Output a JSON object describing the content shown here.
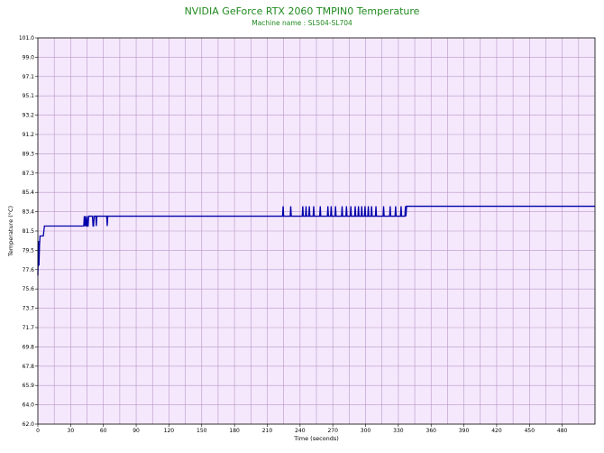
{
  "chart_data": {
    "type": "line",
    "title": "NVIDIA GeForce RTX 2060 TMPIN0 Temperature",
    "subtitle": "Machine name : SL504-SL704",
    "xlabel": "Time (seconds)",
    "ylabel": "Temperature (°C)",
    "xlim": [
      0,
      510
    ],
    "ylim": [
      62.0,
      101.0
    ],
    "xticks": [
      "0",
      "30",
      "60",
      "90",
      "120",
      "150",
      "180",
      "210",
      "240",
      "270",
      "300",
      "330",
      "360",
      "390",
      "420",
      "450",
      "480"
    ],
    "yticks": [
      "62.0",
      "64.0",
      "65.9",
      "67.8",
      "69.8",
      "71.7",
      "73.7",
      "75.6",
      "77.6",
      "79.5",
      "81.5",
      "83.4",
      "85.4",
      "87.3",
      "89.3",
      "91.2",
      "93.2",
      "95.1",
      "97.1",
      "99.0",
      "101.0"
    ],
    "grid": true,
    "colors": {
      "line": "#0000aa",
      "plot_background": "#f5e8fc",
      "grid": "#b896c8",
      "title": "#1f8a1f"
    },
    "series": [
      {
        "x": [
          0,
          0.5,
          1,
          1.5,
          2,
          3,
          5,
          6,
          7,
          8,
          42,
          42.5,
          43,
          43.5,
          44,
          44.5,
          45,
          45.5,
          46,
          46.5,
          47,
          50,
          50.5,
          51,
          51.5,
          52,
          53,
          53.5,
          54,
          55,
          63,
          63.5,
          64,
          64.5,
          65,
          224,
          224.5,
          225,
          225.5,
          231,
          231.5,
          232,
          232.5,
          242,
          242.5,
          243,
          243.5,
          245,
          245.5,
          246,
          246.5,
          248,
          248.5,
          249,
          249.5,
          252,
          252.5,
          253,
          253.5,
          258,
          258.5,
          259,
          259.5,
          265,
          265.5,
          266,
          266.5,
          268,
          268.5,
          269,
          269.5,
          272,
          272.5,
          273,
          273.5,
          278,
          278.5,
          279,
          279.5,
          282,
          282.5,
          283,
          283.5,
          286,
          286.5,
          287,
          287.5,
          290,
          290.5,
          291,
          291.5,
          293,
          293.5,
          294,
          294.5,
          296,
          296.5,
          297,
          297.5,
          299,
          299.5,
          300,
          300.5,
          302,
          302.5,
          303,
          303.5,
          305,
          305.5,
          306,
          306.5,
          309,
          309.5,
          310,
          310.5,
          316,
          316.5,
          317,
          317.5,
          322,
          322.5,
          323,
          323.5,
          327,
          327.5,
          328,
          328.5,
          332,
          332.5,
          333,
          333.5,
          336,
          336.5,
          337,
          337.5,
          510
        ],
        "y": [
          77.0,
          80.5,
          78.0,
          80.0,
          81.0,
          81.0,
          81.0,
          82.0,
          82.0,
          82.0,
          82.0,
          83.0,
          82.0,
          83.0,
          82.0,
          82.0,
          83.0,
          82.0,
          82.0,
          83.0,
          83.0,
          83.0,
          82.0,
          82.0,
          83.0,
          83.0,
          83.0,
          82.0,
          83.0,
          83.0,
          83.0,
          82.0,
          83.0,
          83.0,
          83.0,
          83.0,
          84.0,
          83.0,
          83.0,
          83.0,
          84.0,
          83.0,
          83.0,
          83.0,
          84.0,
          83.0,
          83.0,
          83.0,
          84.0,
          83.0,
          83.0,
          83.0,
          84.0,
          83.0,
          83.0,
          83.0,
          84.0,
          83.0,
          83.0,
          83.0,
          84.0,
          83.0,
          83.0,
          83.0,
          84.0,
          83.0,
          83.0,
          83.0,
          84.0,
          83.0,
          83.0,
          83.0,
          84.0,
          83.0,
          83.0,
          83.0,
          84.0,
          83.0,
          83.0,
          83.0,
          84.0,
          83.0,
          83.0,
          83.0,
          84.0,
          83.0,
          83.0,
          83.0,
          84.0,
          83.0,
          83.0,
          83.0,
          84.0,
          83.0,
          83.0,
          83.0,
          84.0,
          83.0,
          83.0,
          83.0,
          84.0,
          83.0,
          83.0,
          83.0,
          84.0,
          83.0,
          83.0,
          83.0,
          84.0,
          83.0,
          83.0,
          83.0,
          84.0,
          83.0,
          83.0,
          83.0,
          84.0,
          83.0,
          83.0,
          83.0,
          84.0,
          83.0,
          83.0,
          83.0,
          84.0,
          83.0,
          83.0,
          83.0,
          84.0,
          83.0,
          83.0,
          83.0,
          84.0,
          83.0,
          84.0,
          84.0
        ]
      }
    ]
  }
}
